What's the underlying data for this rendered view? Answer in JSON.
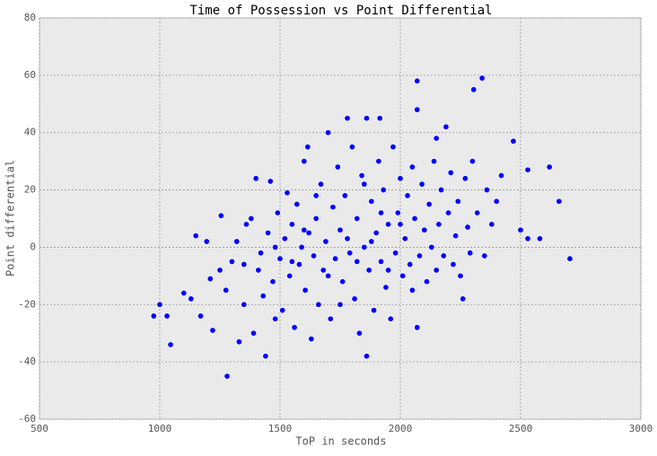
{
  "chart_data": {
    "type": "scatter",
    "title": "Time of Possession vs Point Differential",
    "x_label": "ToP in seconds",
    "y_label": "Point differential",
    "xlim": [
      500,
      3000
    ],
    "ylim": [
      -60,
      80
    ],
    "xticks": [
      500,
      1000,
      1500,
      2000,
      2500,
      3000
    ],
    "yticks": [
      -60,
      -40,
      -20,
      0,
      20,
      40,
      60,
      80
    ],
    "grid": true,
    "color": "#0000ff",
    "x": [
      975,
      1000,
      1030,
      1045,
      1100,
      1130,
      1150,
      1170,
      1195,
      1210,
      1220,
      1250,
      1255,
      1280,
      1275,
      1330,
      1400,
      1440,
      1460,
      1530,
      1700,
      1780,
      1860,
      1915,
      2070,
      2070,
      2305,
      2340,
      2470,
      2500,
      2530,
      2530,
      2580,
      2620,
      2660,
      2705,
      1630,
      1860,
      2070,
      2260,
      2190,
      1300,
      1320,
      1350,
      1360,
      1380,
      1390,
      1410,
      1420,
      1430,
      1450,
      1470,
      1480,
      1490,
      1500,
      1510,
      1520,
      1540,
      1550,
      1560,
      1570,
      1580,
      1590,
      1600,
      1605,
      1615,
      1620,
      1640,
      1650,
      1660,
      1670,
      1680,
      1690,
      1710,
      1720,
      1730,
      1740,
      1750,
      1760,
      1770,
      1790,
      1800,
      1810,
      1820,
      1830,
      1840,
      1850,
      1870,
      1880,
      1890,
      1900,
      1910,
      1920,
      1930,
      1940,
      1950,
      1960,
      1970,
      1980,
      1990,
      2000,
      2010,
      2020,
      2030,
      2040,
      2050,
      2060,
      2080,
      2090,
      2100,
      2110,
      2120,
      2130,
      2140,
      2150,
      2160,
      2170,
      2180,
      2200,
      2210,
      2220,
      2230,
      2240,
      2250,
      2270,
      2280,
      2290,
      2300,
      2320,
      2350,
      2360,
      2380,
      2400,
      2420,
      1700,
      1750,
      1820,
      1880,
      1950,
      2000,
      1600,
      1550,
      1650,
      1850,
      2050,
      1780,
      1480,
      1350,
      2150,
      1920
    ],
    "y": [
      -24,
      -20,
      -24,
      -34,
      -16,
      -18,
      4,
      -24,
      2,
      -11,
      -29,
      -8,
      11,
      -45,
      -15,
      -33,
      24,
      -38,
      23,
      19,
      40,
      45,
      45,
      45,
      58,
      48,
      55,
      59,
      37,
      6,
      27,
      3,
      3,
      28,
      16,
      -4,
      -32,
      -38,
      -28,
      -18,
      42,
      -5,
      2,
      -20,
      8,
      10,
      -30,
      -8,
      -2,
      -17,
      5,
      -12,
      -25,
      12,
      -4,
      -22,
      3,
      -10,
      8,
      -28,
      15,
      -6,
      0,
      30,
      -15,
      35,
      5,
      -3,
      10,
      -20,
      22,
      -8,
      2,
      -25,
      14,
      -4,
      28,
      6,
      -12,
      18,
      -2,
      35,
      -18,
      10,
      -30,
      25,
      0,
      -8,
      16,
      -22,
      5,
      30,
      -5,
      20,
      -14,
      8,
      -25,
      35,
      -2,
      12,
      24,
      -10,
      3,
      18,
      -6,
      28,
      10,
      -3,
      22,
      6,
      -12,
      15,
      0,
      30,
      -8,
      8,
      20,
      -3,
      12,
      26,
      -6,
      4,
      16,
      -10,
      24,
      7,
      -2,
      30,
      12,
      -3,
      20,
      8,
      16,
      25,
      -10,
      -20,
      -5,
      2,
      -8,
      8,
      6,
      -5,
      18,
      22,
      -15,
      3,
      0,
      -6,
      38,
      12
    ]
  }
}
